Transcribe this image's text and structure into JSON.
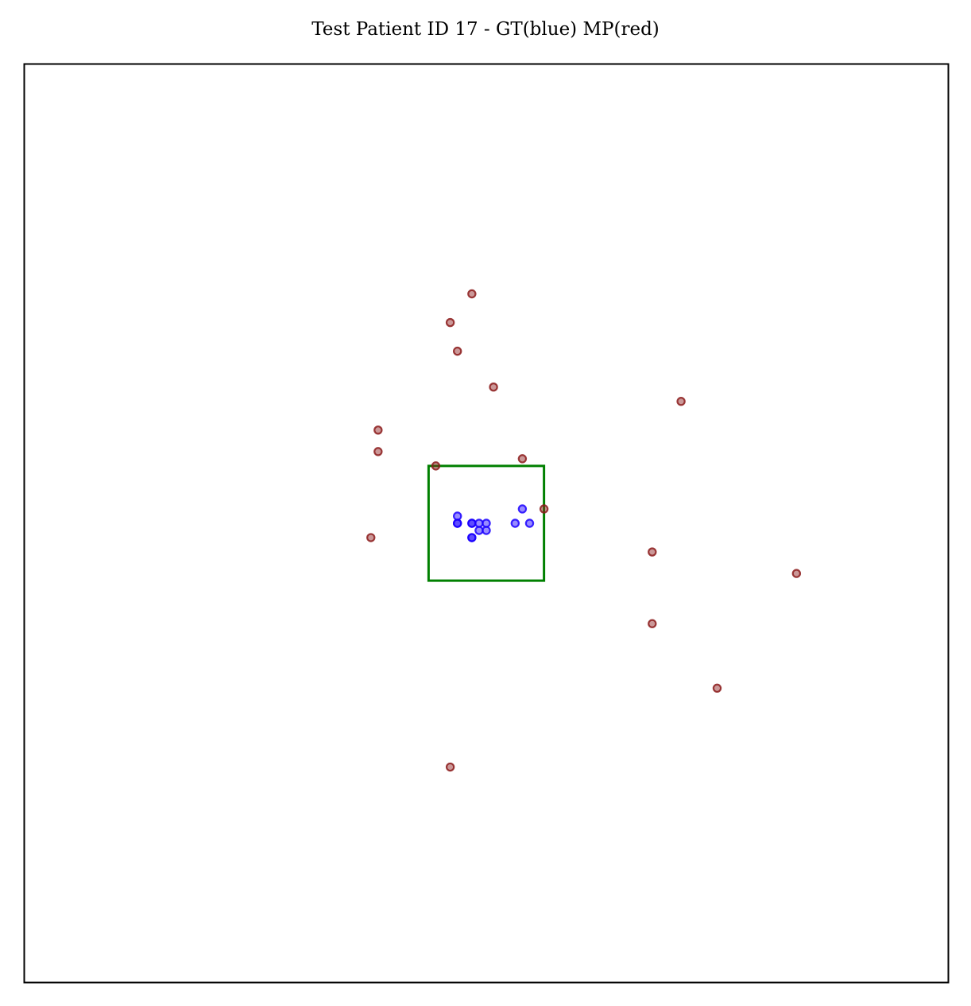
{
  "chart_data": {
    "type": "scatter",
    "title": "Test Patient ID 17 - GT(blue) MP(red)",
    "xlabel": "",
    "ylabel": "",
    "xlim": [
      0,
      128
    ],
    "ylim": [
      128,
      0
    ],
    "axis_ticks": false,
    "grid": false,
    "series": [
      {
        "color": "#1a00ff",
        "points": [
          [
            60,
            63
          ],
          [
            62,
            64
          ],
          [
            63,
            64
          ],
          [
            64,
            64
          ],
          [
            63,
            65
          ],
          [
            64,
            65
          ],
          [
            62,
            66
          ],
          [
            60,
            64
          ],
          [
            62,
            64
          ],
          [
            68,
            64
          ],
          [
            69,
            62
          ],
          [
            70,
            64
          ],
          [
            62,
            66
          ],
          [
            60,
            64
          ]
        ]
      },
      {
        "color": "#8b1a1a",
        "points": [
          [
            62,
            32
          ],
          [
            59,
            36
          ],
          [
            60,
            40
          ],
          [
            65,
            45
          ],
          [
            91,
            47
          ],
          [
            49,
            51
          ],
          [
            49,
            54
          ],
          [
            57,
            56
          ],
          [
            69,
            55
          ],
          [
            72,
            62
          ],
          [
            48,
            66
          ],
          [
            87,
            68
          ],
          [
            107,
            71
          ],
          [
            87,
            78
          ],
          [
            96,
            87
          ],
          [
            59,
            98
          ]
        ]
      }
    ],
    "box": {
      "color": "#008000",
      "x": [
        56,
        72
      ],
      "y": [
        56,
        72
      ]
    }
  }
}
